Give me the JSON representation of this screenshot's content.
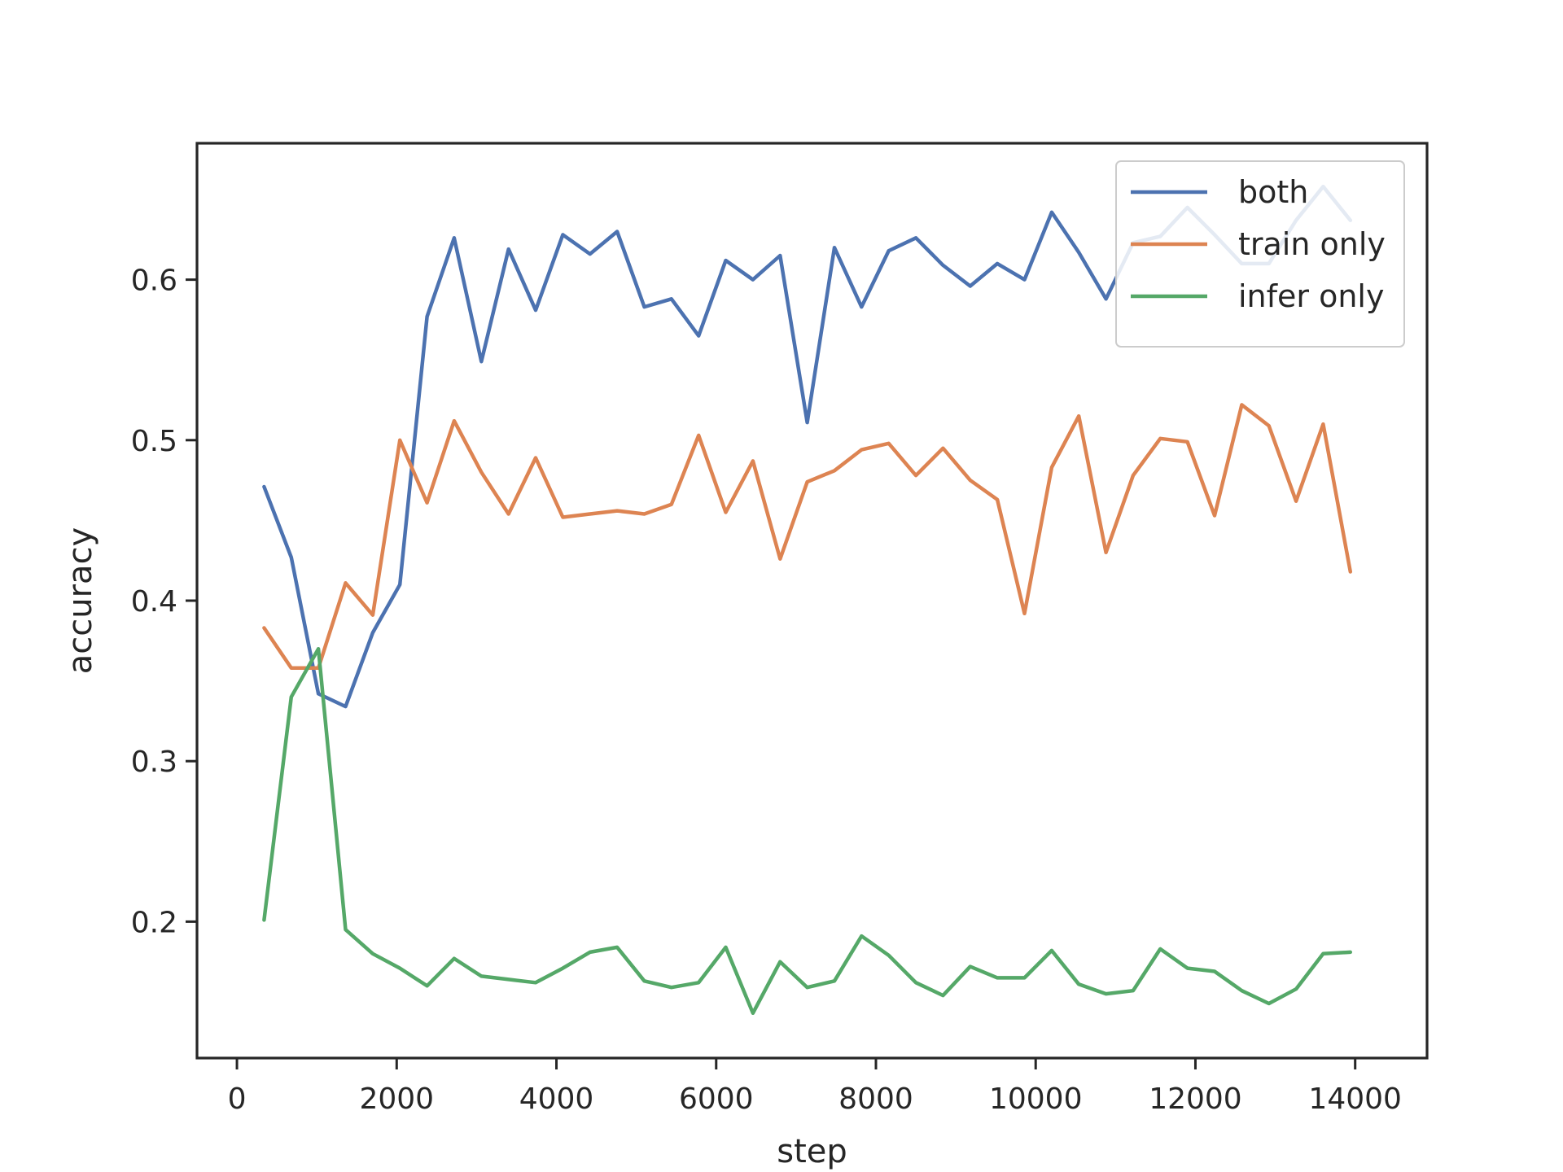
{
  "chart_data": {
    "type": "line",
    "title": "",
    "xlabel": "step",
    "ylabel": "accuracy",
    "xlim": [
      -500,
      14900
    ],
    "ylim": [
      0.115,
      0.685
    ],
    "x_ticks": [
      0,
      2000,
      4000,
      6000,
      8000,
      10000,
      12000,
      14000
    ],
    "x_tick_labels": [
      "0",
      "2000",
      "4000",
      "6000",
      "8000",
      "10000",
      "12000",
      "14000"
    ],
    "y_ticks": [
      0.2,
      0.3,
      0.4,
      0.5,
      0.6
    ],
    "y_tick_labels": [
      "0.2",
      "0.3",
      "0.4",
      "0.5",
      "0.6"
    ],
    "grid": false,
    "legend_position": "top-right",
    "x": [
      340,
      680,
      1020,
      1360,
      1700,
      2040,
      2380,
      2720,
      3060,
      3400,
      3740,
      4080,
      4420,
      4760,
      5100,
      5440,
      5780,
      6120,
      6460,
      6800,
      7140,
      7480,
      7820,
      8160,
      8500,
      8840,
      9180,
      9520,
      9860,
      10200,
      10540,
      10880,
      11220,
      11560,
      11900,
      12240,
      12580,
      12920,
      13260,
      13600,
      13940
    ],
    "series": [
      {
        "name": "both",
        "color": "#4c72b0",
        "values": [
          0.471,
          0.427,
          0.342,
          0.334,
          0.38,
          0.41,
          0.577,
          0.626,
          0.549,
          0.619,
          0.581,
          0.628,
          0.616,
          0.63,
          0.583,
          0.588,
          0.565,
          0.612,
          0.6,
          0.615,
          0.511,
          0.62,
          0.583,
          0.618,
          0.626,
          0.609,
          0.596,
          0.61,
          0.6,
          0.642,
          0.617,
          0.588,
          0.623,
          0.627,
          0.645,
          0.628,
          0.61,
          0.61,
          0.637,
          0.658,
          0.637
        ]
      },
      {
        "name": "train only",
        "color": "#dd8452",
        "values": [
          0.383,
          0.358,
          0.358,
          0.411,
          0.391,
          0.5,
          0.461,
          0.512,
          0.48,
          0.454,
          0.489,
          0.452,
          0.454,
          0.456,
          0.454,
          0.46,
          0.503,
          0.455,
          0.487,
          0.426,
          0.474,
          0.481,
          0.494,
          0.498,
          0.478,
          0.495,
          0.475,
          0.463,
          0.392,
          0.483,
          0.515,
          0.43,
          0.478,
          0.501,
          0.499,
          0.453,
          0.522,
          0.509,
          0.462,
          0.51,
          0.418
        ]
      },
      {
        "name": "infer only",
        "color": "#55a868",
        "values": [
          0.201,
          0.34,
          0.37,
          0.195,
          0.18,
          0.171,
          0.16,
          0.177,
          0.166,
          0.164,
          0.162,
          0.171,
          0.181,
          0.184,
          0.163,
          0.159,
          0.162,
          0.184,
          0.143,
          0.175,
          0.159,
          0.163,
          0.191,
          0.179,
          0.162,
          0.154,
          0.172,
          0.165,
          0.165,
          0.182,
          0.161,
          0.155,
          0.157,
          0.183,
          0.171,
          0.169,
          0.157,
          0.149,
          0.158,
          0.18,
          0.181
        ]
      }
    ]
  }
}
